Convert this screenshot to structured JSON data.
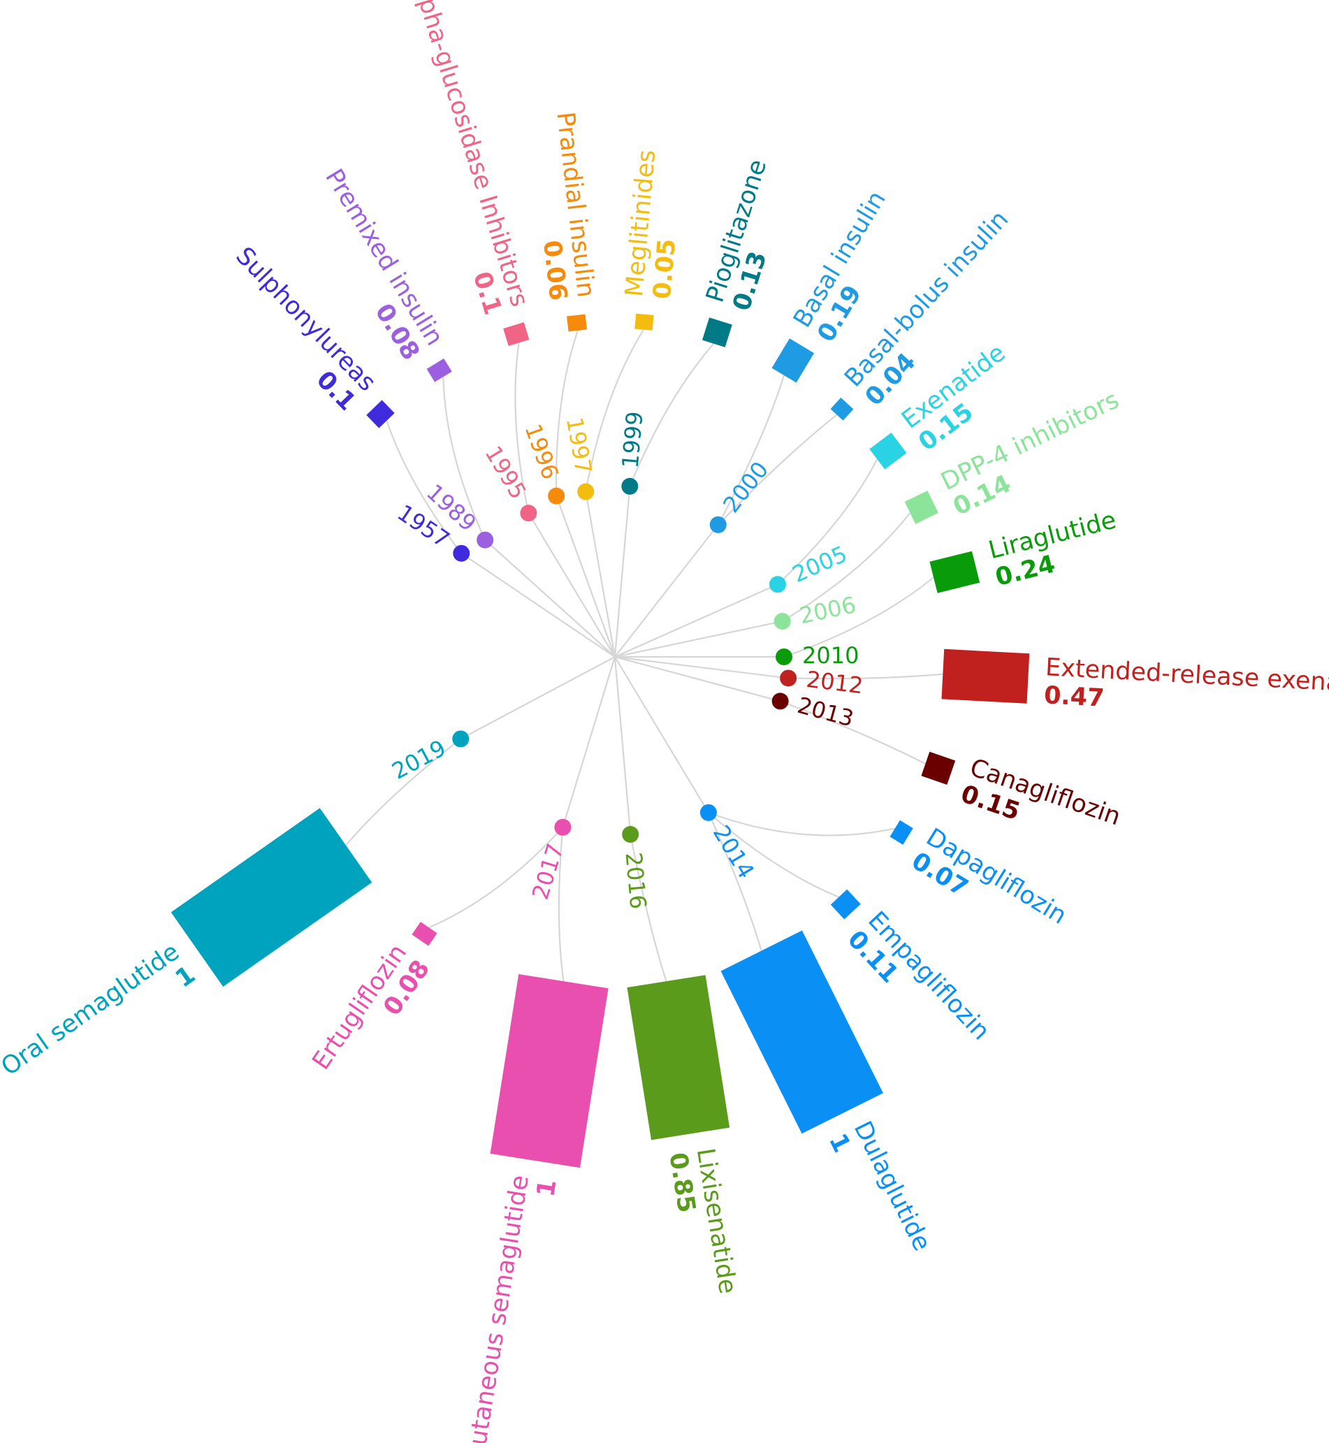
{
  "chart_data": {
    "type": "radial-bar",
    "title": "",
    "items": [
      {
        "name": "Sulphonylureas",
        "year": "1957",
        "value": 0.1,
        "value_label": "0.1",
        "color": "#3f2bdc"
      },
      {
        "name": "Premixed insulin",
        "year": "1989",
        "value": 0.08,
        "value_label": "0.08",
        "color": "#9b5fe0"
      },
      {
        "name": "Alpha-glucosidase Inhibitors",
        "year": "1995",
        "value": 0.1,
        "value_label": "0.1",
        "color": "#f06486"
      },
      {
        "name": "Prandial insulin",
        "year": "1996",
        "value": 0.06,
        "value_label": "0.06",
        "color": "#f58a0b"
      },
      {
        "name": "Meglitinides",
        "year": "1997",
        "value": 0.05,
        "value_label": "0.05",
        "color": "#f5bc10"
      },
      {
        "name": "Pioglitazone",
        "year": "1999",
        "value": 0.13,
        "value_label": "0.13",
        "color": "#007a87"
      },
      {
        "name": "Basal insulin",
        "year": "2000",
        "value": 0.19,
        "value_label": "0.19",
        "color": "#1e9be3"
      },
      {
        "name": "Basal-bolus insulin",
        "year": "2000",
        "value": 0.04,
        "value_label": "0.04",
        "color": "#1e9be3"
      },
      {
        "name": "Exenatide",
        "year": "2005",
        "value": 0.15,
        "value_label": "0.15",
        "color": "#29d3e3"
      },
      {
        "name": "DPP-4 inhibitors",
        "year": "2006",
        "value": 0.14,
        "value_label": "0.14",
        "color": "#8ce39a"
      },
      {
        "name": "Liraglutide",
        "year": "2010",
        "value": 0.24,
        "value_label": "0.24",
        "color": "#0a9b0a"
      },
      {
        "name": "Extended-release exenatide",
        "year": "2012",
        "value": 0.47,
        "value_label": "0.47",
        "color": "#c0211f"
      },
      {
        "name": "Canagliflozin",
        "year": "2013",
        "value": 0.15,
        "value_label": "0.15",
        "color": "#6b0000"
      },
      {
        "name": "Dapagliflozin",
        "year": "2014",
        "value": 0.07,
        "value_label": "0.07",
        "color": "#0a8ff5"
      },
      {
        "name": "Empagliflozin",
        "year": "2014",
        "value": 0.11,
        "value_label": "0.11",
        "color": "#0a8ff5"
      },
      {
        "name": "Dulaglutide",
        "year": "2014",
        "value": 1,
        "value_label": "1",
        "color": "#0a8ff5"
      },
      {
        "name": "Lixisenatide",
        "year": "2016",
        "value": 0.85,
        "value_label": "0.85",
        "color": "#5b9b1c"
      },
      {
        "name": "Subcutaneous semaglutide",
        "year": "2017",
        "value": 1,
        "value_label": "1",
        "color": "#e84fae"
      },
      {
        "name": "Ertugliflozin",
        "year": "2017",
        "value": 0.08,
        "value_label": "0.08",
        "color": "#e84fae"
      },
      {
        "name": "Oral semaglutide",
        "year": "2019",
        "value": 1,
        "value_label": "1",
        "color": "#00a3bd"
      }
    ],
    "years": [
      {
        "year": "1957",
        "color": "#3f2bdc"
      },
      {
        "year": "1989",
        "color": "#9b5fe0"
      },
      {
        "year": "1995",
        "color": "#f06486"
      },
      {
        "year": "1996",
        "color": "#f58a0b"
      },
      {
        "year": "1997",
        "color": "#f5bc10"
      },
      {
        "year": "1999",
        "color": "#007a87"
      },
      {
        "year": "2000",
        "color": "#1e9be3"
      },
      {
        "year": "2005",
        "color": "#29d3e3"
      },
      {
        "year": "2006",
        "color": "#8ce39a"
      },
      {
        "year": "2010",
        "color": "#0a9b0a"
      },
      {
        "year": "2012",
        "color": "#c0211f"
      },
      {
        "year": "2013",
        "color": "#6b0000"
      },
      {
        "year": "2014",
        "color": "#0a8ff5"
      },
      {
        "year": "2016",
        "color": "#5b9b1c"
      },
      {
        "year": "2017",
        "color": "#e84fae"
      },
      {
        "year": "2019",
        "color": "#00a3bd"
      }
    ]
  }
}
